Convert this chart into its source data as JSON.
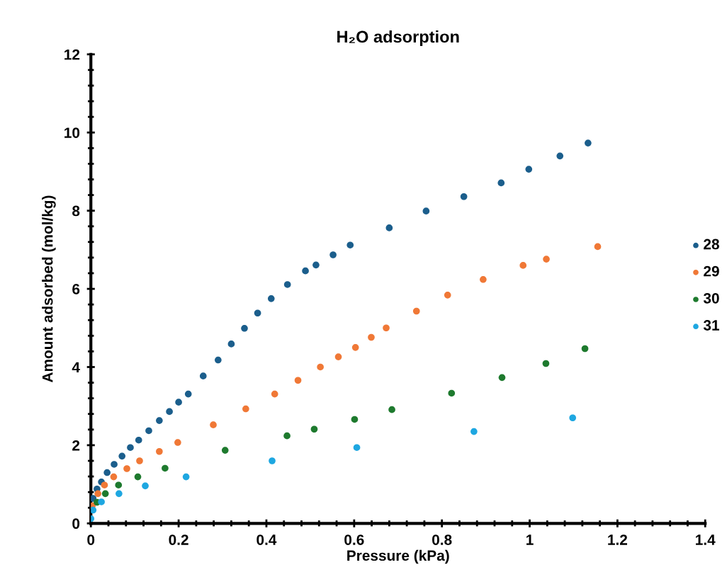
{
  "chart_data": {
    "type": "scatter",
    "title": "H₂O adsorption",
    "xlabel": "Pressure (kPa)",
    "ylabel": "Amount adsorbed (mol/kg)",
    "xlim": [
      0,
      1.4
    ],
    "xticks": [
      0,
      0.2,
      0.4,
      0.6,
      0.8,
      1,
      1.2,
      1.4
    ],
    "ylim": [
      0,
      12
    ],
    "yticks": [
      0,
      2,
      4,
      6,
      8,
      10,
      12
    ],
    "grid": false,
    "legend": "right",
    "marker": "circle",
    "series": [
      {
        "name": "28",
        "color": "#1b5e8c",
        "x": [
          0.005,
          0.014,
          0.024,
          0.037,
          0.053,
          0.071,
          0.09,
          0.109,
          0.132,
          0.156,
          0.179,
          0.2,
          0.222,
          0.256,
          0.29,
          0.32,
          0.35,
          0.38,
          0.411,
          0.448,
          0.489,
          0.513,
          0.552,
          0.591,
          0.68,
          0.764,
          0.85,
          0.935,
          0.998,
          1.069,
          1.133
        ],
        "values": [
          0.64,
          0.88,
          1.06,
          1.3,
          1.51,
          1.72,
          1.94,
          2.13,
          2.37,
          2.63,
          2.86,
          3.1,
          3.31,
          3.77,
          4.18,
          4.59,
          4.99,
          5.38,
          5.75,
          6.11,
          6.46,
          6.61,
          6.87,
          7.12,
          7.56,
          7.99,
          8.36,
          8.71,
          9.06,
          9.4,
          9.73
        ]
      },
      {
        "name": "29",
        "color": "#f07836",
        "x": [
          0.003,
          0.016,
          0.031,
          0.052,
          0.082,
          0.111,
          0.156,
          0.198,
          0.279,
          0.353,
          0.419,
          0.472,
          0.523,
          0.564,
          0.603,
          0.639,
          0.673,
          0.742,
          0.813,
          0.894,
          0.985,
          1.038,
          1.155
        ],
        "values": [
          0.45,
          0.76,
          0.98,
          1.19,
          1.4,
          1.6,
          1.84,
          2.07,
          2.52,
          2.93,
          3.31,
          3.66,
          4.0,
          4.26,
          4.5,
          4.76,
          5.0,
          5.43,
          5.84,
          6.24,
          6.6,
          6.76,
          7.08
        ]
      },
      {
        "name": "30",
        "color": "#1e7a2e",
        "x": [
          0.014,
          0.033,
          0.063,
          0.107,
          0.169,
          0.306,
          0.447,
          0.509,
          0.601,
          0.686,
          0.822,
          0.937,
          1.037,
          1.126
        ],
        "values": [
          0.54,
          0.76,
          0.98,
          1.19,
          1.41,
          1.87,
          2.24,
          2.41,
          2.66,
          2.91,
          3.33,
          3.73,
          4.09,
          4.47
        ]
      },
      {
        "name": "31",
        "color": "#1ea7e1",
        "x": [
          0.0,
          0.005,
          0.024,
          0.064,
          0.124,
          0.217,
          0.413,
          0.606,
          0.873,
          1.098
        ],
        "values": [
          0.12,
          0.34,
          0.55,
          0.76,
          0.96,
          1.19,
          1.6,
          1.94,
          2.35,
          2.7
        ]
      }
    ]
  }
}
